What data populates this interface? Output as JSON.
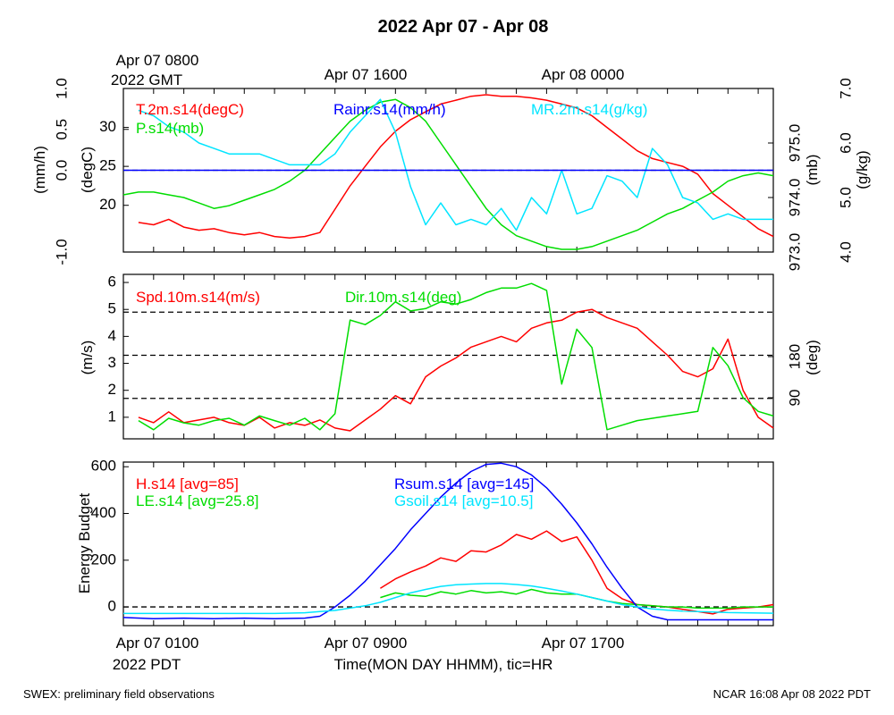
{
  "page": {
    "title": "2022 Apr 07 - Apr 08",
    "footer_left": "SWEX: preliminary field observations",
    "footer_right": "NCAR 16:08 Apr 08 2022 PDT"
  },
  "top_time_labels": {
    "gmt_line1": "Apr 07 0800",
    "gmt_line2": "2022 GMT",
    "mid": "Apr 07 1600",
    "right": "Apr 08 0000"
  },
  "bottom_time_labels": {
    "left": "Apr 07 0100",
    "left_line2": "2022 PDT",
    "mid": "Apr 07 0900",
    "right": "Apr 07 1700",
    "axis_title": "Time(MON DAY HHMM), tic=HR"
  },
  "chart_data": [
    {
      "type": "line",
      "x_unit": "hours since Apr 07 0000 PDT",
      "xlim": [
        0,
        21.5
      ],
      "y_axes": {
        "rain": {
          "label": "(mm/h)",
          "ylim": [
            -1,
            1
          ],
          "ticks": [
            "-1.0",
            "0.0",
            "0.5",
            "1.0"
          ],
          "tick_values": [
            -1,
            0,
            0.5,
            1
          ]
        },
        "temp": {
          "label": "(degC)",
          "ylim": [
            14,
            35
          ],
          "ticks": [
            "20",
            "25",
            "30"
          ],
          "tick_values": [
            20,
            25,
            30
          ]
        },
        "pres": {
          "label": "(mb)",
          "ylim": [
            973,
            976
          ],
          "ticks": [
            "973.0",
            "974.0",
            "975.0"
          ],
          "tick_values": [
            973,
            974,
            975
          ]
        },
        "mr": {
          "label": "(g/kg)",
          "ylim": [
            4,
            7
          ],
          "ticks": [
            "4.0",
            "5.0",
            "6.0",
            "7.0"
          ],
          "tick_values": [
            4,
            5,
            6,
            7
          ]
        }
      },
      "series": [
        {
          "name": "T.2m.s14(degC)",
          "color": "#ff0000",
          "axis": "temp",
          "x": [
            0.5,
            1,
            1.5,
            2,
            2.5,
            3,
            3.5,
            4,
            4.5,
            5,
            5.5,
            6,
            6.5,
            7,
            7.5,
            8,
            8.5,
            9,
            9.5,
            10,
            10.5,
            11,
            11.5,
            12,
            12.5,
            13,
            13.5,
            14,
            14.5,
            15,
            15.5,
            16,
            16.5,
            17,
            17.5,
            18,
            18.5,
            19,
            19.5,
            20,
            20.5,
            21,
            21.5
          ],
          "y": [
            17.8,
            17.5,
            18.2,
            17.2,
            16.8,
            17.0,
            16.5,
            16.2,
            16.5,
            16.0,
            15.8,
            16.0,
            16.5,
            19.5,
            22.5,
            25.0,
            27.5,
            29.5,
            31.0,
            32.0,
            33.0,
            33.5,
            34.0,
            34.2,
            34.0,
            34.0,
            33.8,
            33.5,
            33.0,
            32.5,
            31.5,
            30.0,
            28.5,
            27.0,
            26.0,
            25.5,
            25.0,
            24.0,
            21.5,
            20.0,
            18.5,
            17.0,
            16.0
          ]
        },
        {
          "name": "P.s14(mb)",
          "color": "#00dd00",
          "axis": "pres",
          "x": [
            0,
            0.5,
            1,
            1.5,
            2,
            2.5,
            3,
            3.5,
            4,
            4.5,
            5,
            5.5,
            6,
            6.5,
            7,
            7.5,
            8,
            8.5,
            9,
            9.5,
            10,
            10.5,
            11,
            11.5,
            12,
            12.5,
            13,
            13.5,
            14,
            14.5,
            15,
            15.5,
            16,
            16.5,
            17,
            17.5,
            18,
            18.5,
            19,
            19.5,
            20,
            20.5,
            21,
            21.5
          ],
          "y": [
            974.05,
            974.1,
            974.1,
            974.05,
            974.0,
            973.9,
            973.8,
            973.85,
            973.95,
            974.05,
            974.15,
            974.3,
            974.5,
            974.8,
            975.1,
            975.4,
            975.6,
            975.75,
            975.8,
            975.65,
            975.4,
            975.0,
            974.6,
            974.2,
            973.8,
            973.5,
            973.3,
            973.2,
            973.1,
            973.05,
            973.05,
            973.1,
            973.2,
            973.3,
            973.4,
            973.55,
            973.7,
            973.8,
            973.95,
            974.1,
            974.3,
            974.4,
            974.45,
            974.4
          ]
        },
        {
          "name": "MR.2m.s14(g/kg)",
          "color": "#00e5ff",
          "axis": "mr",
          "x": [
            0.5,
            1,
            1.5,
            2,
            2.5,
            3,
            3.5,
            4,
            4.5,
            5,
            5.5,
            6,
            6.5,
            7,
            7.5,
            8,
            8.5,
            9,
            9.5,
            10,
            10.5,
            11,
            11.5,
            12,
            12.5,
            13,
            13.5,
            14,
            14.5,
            15,
            15.5,
            16,
            16.5,
            17,
            17.5,
            18,
            18.5,
            19,
            19.5,
            20,
            20.5,
            21,
            21.5
          ],
          "y": [
            6.6,
            6.5,
            6.3,
            6.2,
            6.0,
            5.9,
            5.8,
            5.8,
            5.8,
            5.7,
            5.6,
            5.6,
            5.6,
            5.8,
            6.2,
            6.5,
            6.8,
            6.2,
            5.2,
            4.5,
            4.9,
            4.5,
            4.6,
            4.5,
            4.8,
            4.4,
            5.0,
            4.7,
            5.5,
            4.7,
            4.8,
            5.4,
            5.3,
            5.0,
            5.9,
            5.6,
            5.0,
            4.9,
            4.6,
            4.7,
            4.6,
            4.6,
            4.6
          ]
        },
        {
          "name": "Rainr.s14(mm/h)",
          "color": "#0000ff",
          "axis": "rain",
          "x": [
            0,
            21.5
          ],
          "y": [
            0,
            0
          ]
        }
      ],
      "reference_lines": [
        {
          "axis": "rain",
          "y": 0,
          "style": "dashed"
        }
      ]
    },
    {
      "type": "line",
      "x_unit": "hours since Apr 07 0000 PDT",
      "xlim": [
        0,
        21.5
      ],
      "y_axes": {
        "spd": {
          "label": "(m/s)",
          "ylim": [
            0.2,
            6.3
          ],
          "ticks": [
            "1",
            "2",
            "3",
            "4",
            "5",
            "6"
          ],
          "tick_values": [
            1,
            2,
            3,
            4,
            5,
            6
          ]
        },
        "dir": {
          "label": "(deg)",
          "ylim": [
            0,
            360
          ],
          "ticks": [
            "90",
            "180"
          ],
          "tick_values": [
            90,
            180
          ]
        }
      },
      "series": [
        {
          "name": "Spd.10m.s14(m/s)",
          "color": "#ff0000",
          "axis": "spd",
          "x": [
            0.5,
            1,
            1.5,
            2,
            2.5,
            3,
            3.5,
            4,
            4.5,
            5,
            5.5,
            6,
            6.5,
            7,
            7.5,
            8,
            8.5,
            9,
            9.5,
            10,
            10.5,
            11,
            11.5,
            12,
            12.5,
            13,
            13.5,
            14,
            14.5,
            15,
            15.5,
            16,
            16.5,
            17,
            17.5,
            18,
            18.5,
            19,
            19.5,
            20,
            20.5,
            21,
            21.5
          ],
          "y": [
            1.0,
            0.8,
            1.2,
            0.8,
            0.9,
            1.0,
            0.8,
            0.7,
            1.0,
            0.6,
            0.8,
            0.7,
            0.9,
            0.6,
            0.5,
            0.9,
            1.3,
            1.8,
            1.5,
            2.5,
            2.9,
            3.2,
            3.6,
            3.8,
            4.0,
            3.8,
            4.3,
            4.5,
            4.6,
            4.9,
            5.0,
            4.7,
            4.5,
            4.3,
            3.8,
            3.3,
            2.7,
            2.5,
            2.8,
            3.9,
            2.0,
            1.0,
            0.6
          ]
        },
        {
          "name": "Dir.10m.s14(deg)",
          "color": "#00dd00",
          "axis": "dir",
          "x": [
            0.5,
            1,
            1.5,
            2,
            2.5,
            3,
            3.5,
            4,
            4.5,
            5,
            5.5,
            6,
            6.5,
            7,
            7.5,
            8,
            8.5,
            9,
            9.5,
            10,
            10.5,
            11,
            11.5,
            12,
            12.5,
            13,
            13.5,
            14,
            14.5,
            15,
            15.5,
            16,
            16.5,
            17,
            17.5,
            18,
            18.5,
            19,
            19.5,
            20,
            20.5,
            21,
            21.5
          ],
          "y": [
            40,
            20,
            45,
            35,
            30,
            40,
            45,
            30,
            50,
            40,
            30,
            45,
            20,
            55,
            260,
            250,
            270,
            300,
            280,
            285,
            300,
            295,
            305,
            320,
            330,
            330,
            340,
            325,
            120,
            240,
            200,
            20,
            30,
            40,
            45,
            50,
            55,
            60,
            200,
            160,
            90,
            60,
            50
          ]
        }
      ],
      "reference_lines": [
        {
          "axis": "spd",
          "y": 1.7,
          "style": "dashed"
        },
        {
          "axis": "spd",
          "y": 3.3,
          "style": "dashed"
        },
        {
          "axis": "spd",
          "y": 4.9,
          "style": "dashed"
        }
      ]
    },
    {
      "type": "line",
      "x_unit": "hours since Apr 07 0000 PDT",
      "xlim": [
        0,
        21.5
      ],
      "y_axes": {
        "eb": {
          "label": "Energy Budget",
          "ylim": [
            -80,
            620
          ],
          "ticks": [
            "0",
            "200",
            "400",
            "600"
          ],
          "tick_values": [
            0,
            200,
            400,
            600
          ]
        }
      },
      "series": [
        {
          "name": "H.s14 [avg=85]",
          "color": "#ff0000",
          "axis": "eb",
          "x": [
            8.5,
            9,
            9.5,
            10,
            10.5,
            11,
            11.5,
            12,
            12.5,
            13,
            13.5,
            14,
            14.5,
            15,
            15.5,
            16,
            16.5,
            17,
            17.5,
            18,
            18.5,
            19,
            19.5,
            20,
            20.5,
            21,
            21.5
          ],
          "y": [
            80,
            120,
            150,
            175,
            210,
            195,
            240,
            235,
            265,
            310,
            290,
            325,
            280,
            300,
            200,
            80,
            35,
            10,
            5,
            0,
            -10,
            -20,
            -30,
            -10,
            -5,
            0,
            10
          ]
        },
        {
          "name": "LE.s14 [avg=25.8]",
          "color": "#00dd00",
          "axis": "eb",
          "x": [
            8.5,
            9,
            9.5,
            10,
            10.5,
            11,
            11.5,
            12,
            12.5,
            13,
            13.5,
            14,
            14.5,
            15,
            15.5,
            16,
            16.5,
            17,
            17.5,
            18,
            18.5,
            19,
            19.5,
            20,
            20.5,
            21,
            21.5
          ],
          "y": [
            40,
            60,
            50,
            45,
            65,
            55,
            70,
            60,
            65,
            55,
            75,
            60,
            55,
            55,
            40,
            25,
            15,
            10,
            5,
            0,
            0,
            -5,
            -5,
            -5,
            0,
            0,
            0
          ]
        },
        {
          "name": "Rsum.s14 [avg=145]",
          "color": "#0000ff",
          "axis": "eb",
          "x": [
            0,
            1,
            2,
            3,
            4,
            5,
            6,
            6.5,
            7,
            7.5,
            8,
            8.5,
            9,
            9.5,
            10,
            10.5,
            11,
            11.5,
            12,
            12.5,
            13,
            13.5,
            14,
            14.5,
            15,
            15.5,
            16,
            16.5,
            17,
            17.5,
            18,
            18.5,
            19,
            19.5,
            20,
            20.5,
            21,
            21.5
          ],
          "y": [
            -45,
            -50,
            -48,
            -50,
            -48,
            -50,
            -48,
            -40,
            0,
            50,
            110,
            180,
            250,
            330,
            400,
            470,
            530,
            580,
            610,
            615,
            600,
            565,
            510,
            440,
            360,
            270,
            170,
            80,
            0,
            -40,
            -55,
            -55,
            -55,
            -55,
            -55,
            -55,
            -55,
            -55
          ]
        },
        {
          "name": "Gsoil.s14 [avg=10.5]",
          "color": "#00e5ff",
          "axis": "eb",
          "x": [
            0,
            1,
            2,
            3,
            4,
            5,
            6,
            6.5,
            7,
            7.5,
            8,
            8.5,
            9,
            9.5,
            10,
            10.5,
            11,
            11.5,
            12,
            12.5,
            13,
            13.5,
            14,
            14.5,
            15,
            15.5,
            16,
            16.5,
            17,
            17.5,
            18,
            18.5,
            19,
            19.5,
            20,
            20.5,
            21,
            21.5
          ],
          "y": [
            -28,
            -28,
            -28,
            -28,
            -28,
            -28,
            -25,
            -20,
            -15,
            -5,
            5,
            20,
            40,
            60,
            75,
            88,
            95,
            98,
            100,
            100,
            96,
            90,
            80,
            68,
            55,
            40,
            25,
            10,
            0,
            -8,
            -14,
            -18,
            -20,
            -22,
            -24,
            -25,
            -26,
            -27
          ]
        }
      ],
      "reference_lines": [
        {
          "axis": "eb",
          "y": 0,
          "style": "dashed"
        }
      ]
    }
  ],
  "colors": {
    "red": "#ff0000",
    "green": "#00dd00",
    "blue": "#0000ff",
    "cyan": "#00e5ff"
  }
}
